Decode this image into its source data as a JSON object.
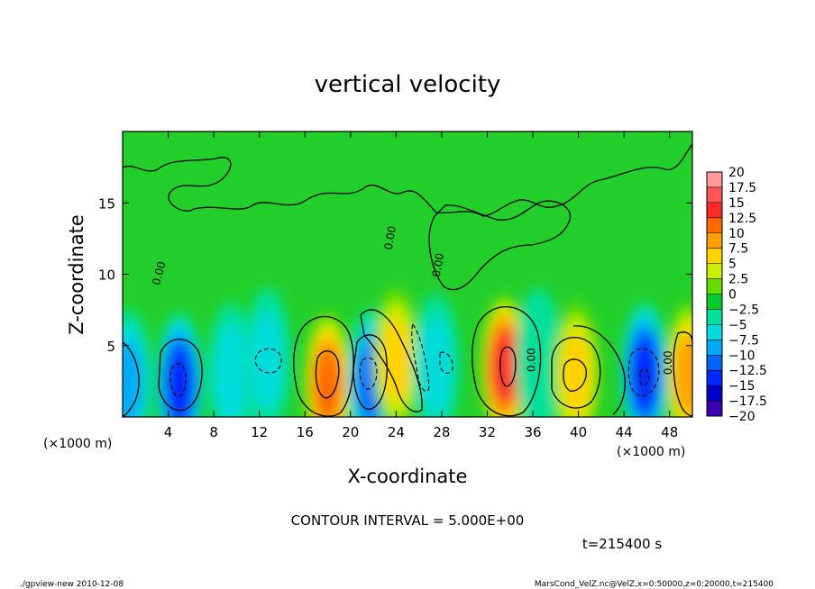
{
  "chart_data": {
    "type": "heatmap",
    "title": "vertical velocity",
    "xlabel": "X-coordinate",
    "ylabel": "Z-coordinate",
    "x_unit_left": "(×1000 m)",
    "x_unit_right": "(×1000 m)",
    "xlim": [
      0,
      50
    ],
    "ylim": [
      0,
      20
    ],
    "x_ticks": [
      4,
      8,
      12,
      16,
      20,
      24,
      28,
      32,
      36,
      40,
      44,
      48
    ],
    "y_ticks": [
      5,
      10,
      15
    ],
    "contour_interval_label": "CONTOUR INTERVAL = 5.000E+00",
    "time_label": "t=215400 s",
    "contour_labels": [
      {
        "text": "0.00",
        "x": 3.5,
        "z": 10.0,
        "angle": -75
      },
      {
        "text": "0.00",
        "x": 23.8,
        "z": 12.5,
        "angle": -80
      },
      {
        "text": "0.00",
        "x": 28.0,
        "z": 10.6,
        "angle": -80
      },
      {
        "text": "0.00",
        "x": 36.2,
        "z": 4.0,
        "angle": -90
      },
      {
        "text": "0.00",
        "x": 48.2,
        "z": 3.8,
        "angle": -90
      }
    ],
    "colorbar": {
      "levels": [
        "20",
        "17.5",
        "15",
        "12.5",
        "10",
        "7.5",
        "5",
        "2.5",
        "0",
        "-2.5",
        "-5",
        "-7.5",
        "-10",
        "-12.5",
        "-15",
        "-17.5",
        "-20"
      ],
      "colors": [
        "#ff9999",
        "#ff5555",
        "#ff2a2a",
        "#ff6a00",
        "#ffa000",
        "#ffd200",
        "#c8ee00",
        "#64dc00",
        "#00cd2a",
        "#00e09a",
        "#00dcdc",
        "#00aaf5",
        "#0064ff",
        "#0028ff",
        "#0000c8",
        "#3c00b4",
        "#7800c8"
      ]
    },
    "cells": [
      {
        "x": 0.5,
        "z": 2.5,
        "w": -9
      },
      {
        "x": 5.0,
        "z": 2.3,
        "w": -14
      },
      {
        "x": 9.5,
        "z": 3.0,
        "w": -5
      },
      {
        "x": 12.7,
        "z": 4.0,
        "w": -5
      },
      {
        "x": 18.0,
        "z": 2.3,
        "w": 13
      },
      {
        "x": 21.8,
        "z": 2.5,
        "w": -10
      },
      {
        "x": 24.0,
        "z": 4.0,
        "w": 8
      },
      {
        "x": 27.5,
        "z": 3.6,
        "w": -7
      },
      {
        "x": 33.5,
        "z": 3.5,
        "w": 15
      },
      {
        "x": 36.5,
        "z": 4.0,
        "w": -4
      },
      {
        "x": 39.8,
        "z": 3.0,
        "w": 9
      },
      {
        "x": 45.8,
        "z": 3.0,
        "w": -13
      },
      {
        "x": 49.7,
        "z": 3.0,
        "w": 10
      }
    ]
  },
  "footer": {
    "left": "./gpview-new  2010-12-08",
    "right": "MarsCond_VelZ.nc@VelZ,x=0:50000,z=0:20000,t=215400"
  }
}
